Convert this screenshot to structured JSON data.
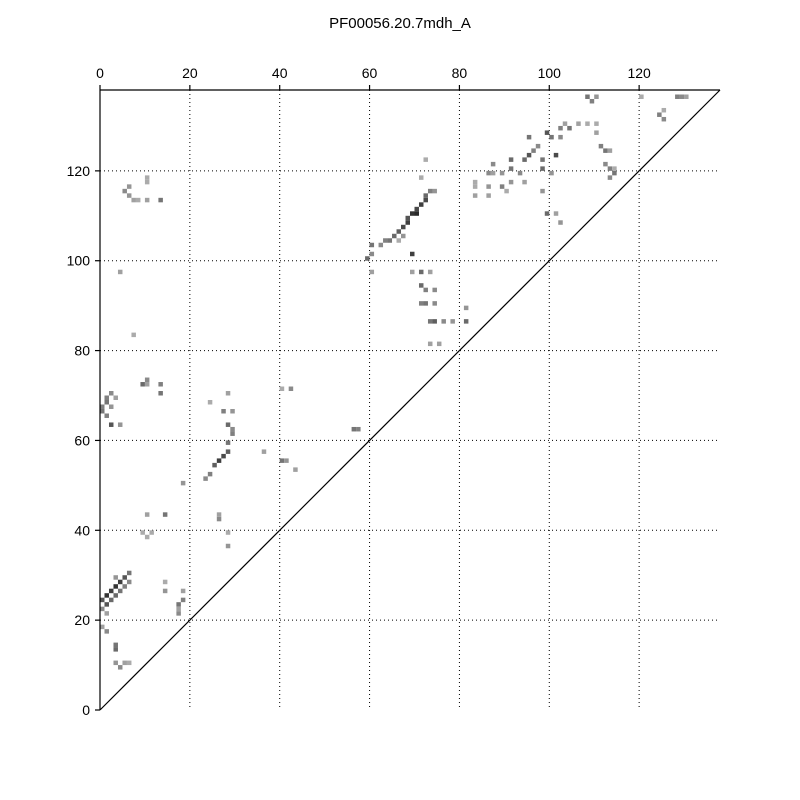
{
  "chart_data": {
    "type": "heatmap",
    "title": "PF00056.20.7mdh_A",
    "xlabel": "",
    "ylabel": "",
    "xlim": [
      0,
      138
    ],
    "ylim": [
      0,
      138
    ],
    "x_ticks": [
      0,
      20,
      40,
      60,
      80,
      100,
      120
    ],
    "y_ticks": [
      0,
      20,
      40,
      60,
      80,
      100,
      120
    ],
    "x_axis_position": "top",
    "grid": true,
    "colormap": "grayscale",
    "cells": [
      [
        0,
        24,
        0.7
      ],
      [
        1,
        25,
        0.85
      ],
      [
        1,
        23,
        0.7
      ],
      [
        2,
        26,
        0.8
      ],
      [
        2,
        24,
        0.6
      ],
      [
        3,
        27,
        0.85
      ],
      [
        3,
        25,
        0.6
      ],
      [
        4,
        28,
        0.8
      ],
      [
        4,
        26,
        0.55
      ],
      [
        5,
        29,
        0.7
      ],
      [
        5,
        27,
        0.5
      ],
      [
        6,
        30,
        0.55
      ],
      [
        6,
        28,
        0.45
      ],
      [
        0,
        22,
        0.45
      ],
      [
        1,
        21,
        0.35
      ],
      [
        3,
        29,
        0.4
      ],
      [
        0,
        66,
        0.55
      ],
      [
        0,
        67,
        0.5
      ],
      [
        1,
        68,
        0.55
      ],
      [
        1,
        69,
        0.5
      ],
      [
        2,
        70,
        0.45
      ],
      [
        1,
        65,
        0.5
      ],
      [
        2,
        67,
        0.4
      ],
      [
        3,
        69,
        0.35
      ],
      [
        2,
        63,
        0.7
      ],
      [
        4,
        63,
        0.4
      ],
      [
        1,
        17,
        0.45
      ],
      [
        0,
        18,
        0.35
      ],
      [
        3,
        13,
        0.6
      ],
      [
        3,
        14,
        0.55
      ],
      [
        3,
        10,
        0.4
      ],
      [
        4,
        9,
        0.45
      ],
      [
        5,
        10,
        0.35
      ],
      [
        6,
        10,
        0.3
      ],
      [
        5,
        115,
        0.45
      ],
      [
        6,
        116,
        0.4
      ],
      [
        6,
        114,
        0.4
      ],
      [
        7,
        113,
        0.35
      ],
      [
        8,
        113,
        0.3
      ],
      [
        10,
        118,
        0.3
      ],
      [
        10,
        117,
        0.3
      ],
      [
        10,
        113,
        0.35
      ],
      [
        13,
        113,
        0.55
      ],
      [
        4,
        97,
        0.35
      ],
      [
        7,
        83,
        0.3
      ],
      [
        9,
        72,
        0.6
      ],
      [
        10,
        73,
        0.45
      ],
      [
        10,
        72,
        0.35
      ],
      [
        13,
        72,
        0.5
      ],
      [
        13,
        70,
        0.55
      ],
      [
        10,
        43,
        0.35
      ],
      [
        9,
        39,
        0.3
      ],
      [
        10,
        38,
        0.3
      ],
      [
        11,
        39,
        0.3
      ],
      [
        14,
        43,
        0.55
      ],
      [
        14,
        28,
        0.3
      ],
      [
        14,
        26,
        0.4
      ],
      [
        17,
        23,
        0.55
      ],
      [
        18,
        24,
        0.5
      ],
      [
        17,
        21,
        0.45
      ],
      [
        17,
        22,
        0.35
      ],
      [
        18,
        26,
        0.35
      ],
      [
        18,
        50,
        0.4
      ],
      [
        23,
        51,
        0.45
      ],
      [
        24,
        52,
        0.5
      ],
      [
        25,
        54,
        0.65
      ],
      [
        26,
        55,
        0.8
      ],
      [
        27,
        56,
        0.75
      ],
      [
        28,
        57,
        0.65
      ],
      [
        28,
        59,
        0.55
      ],
      [
        29,
        61,
        0.5
      ],
      [
        29,
        62,
        0.45
      ],
      [
        28,
        63,
        0.6
      ],
      [
        29,
        66,
        0.4
      ],
      [
        27,
        66,
        0.5
      ],
      [
        28,
        70,
        0.35
      ],
      [
        24,
        68,
        0.3
      ],
      [
        26,
        42,
        0.45
      ],
      [
        26,
        43,
        0.35
      ],
      [
        28,
        36,
        0.4
      ],
      [
        28,
        39,
        0.3
      ],
      [
        36,
        57,
        0.35
      ],
      [
        40,
        71,
        0.3
      ],
      [
        42,
        71,
        0.45
      ],
      [
        40,
        55,
        0.55
      ],
      [
        41,
        55,
        0.4
      ],
      [
        43,
        53,
        0.35
      ],
      [
        56,
        62,
        0.55
      ],
      [
        57,
        62,
        0.5
      ],
      [
        59,
        100,
        0.6
      ],
      [
        60,
        101,
        0.45
      ],
      [
        60,
        103,
        0.55
      ],
      [
        60,
        97,
        0.35
      ],
      [
        62,
        103,
        0.45
      ],
      [
        63,
        104,
        0.5
      ],
      [
        64,
        104,
        0.55
      ],
      [
        65,
        105,
        0.6
      ],
      [
        66,
        106,
        0.65
      ],
      [
        67,
        107,
        0.75
      ],
      [
        68,
        108,
        0.8
      ],
      [
        68,
        109,
        0.7
      ],
      [
        69,
        110,
        0.85
      ],
      [
        70,
        110,
        0.9
      ],
      [
        70,
        111,
        0.75
      ],
      [
        71,
        112,
        0.8
      ],
      [
        72,
        113,
        0.75
      ],
      [
        72,
        114,
        0.6
      ],
      [
        73,
        115,
        0.5
      ],
      [
        74,
        115,
        0.4
      ],
      [
        69,
        101,
        0.8
      ],
      [
        71,
        118,
        0.3
      ],
      [
        72,
        122,
        0.3
      ],
      [
        66,
        104,
        0.3
      ],
      [
        67,
        105,
        0.4
      ],
      [
        69,
        97,
        0.35
      ],
      [
        71,
        97,
        0.6
      ],
      [
        73,
        97,
        0.35
      ],
      [
        71,
        94,
        0.6
      ],
      [
        72,
        93,
        0.5
      ],
      [
        74,
        93,
        0.45
      ],
      [
        71,
        90,
        0.5
      ],
      [
        72,
        90,
        0.55
      ],
      [
        74,
        90,
        0.45
      ],
      [
        73,
        86,
        0.55
      ],
      [
        74,
        86,
        0.65
      ],
      [
        76,
        86,
        0.45
      ],
      [
        78,
        86,
        0.4
      ],
      [
        73,
        81,
        0.35
      ],
      [
        75,
        81,
        0.35
      ],
      [
        81,
        89,
        0.4
      ],
      [
        81,
        86,
        0.6
      ],
      [
        83,
        117,
        0.3
      ],
      [
        83,
        116,
        0.3
      ],
      [
        83,
        114,
        0.35
      ],
      [
        86,
        119,
        0.45
      ],
      [
        86,
        116,
        0.4
      ],
      [
        86,
        114,
        0.35
      ],
      [
        87,
        119,
        0.35
      ],
      [
        87,
        121,
        0.45
      ],
      [
        89,
        119,
        0.4
      ],
      [
        89,
        116,
        0.5
      ],
      [
        90,
        115,
        0.3
      ],
      [
        91,
        120,
        0.55
      ],
      [
        91,
        117,
        0.4
      ],
      [
        91,
        122,
        0.6
      ],
      [
        93,
        119,
        0.45
      ],
      [
        94,
        117,
        0.35
      ],
      [
        94,
        122,
        0.6
      ],
      [
        95,
        123,
        0.7
      ],
      [
        95,
        127,
        0.55
      ],
      [
        96,
        124,
        0.5
      ],
      [
        97,
        125,
        0.45
      ],
      [
        98,
        122,
        0.55
      ],
      [
        98,
        115,
        0.4
      ],
      [
        98,
        120,
        0.6
      ],
      [
        99,
        128,
        0.7
      ],
      [
        100,
        127,
        0.55
      ],
      [
        100,
        119,
        0.4
      ],
      [
        99,
        110,
        0.6
      ],
      [
        101,
        123,
        0.75
      ],
      [
        102,
        129,
        0.5
      ],
      [
        102,
        127,
        0.45
      ],
      [
        102,
        108,
        0.4
      ],
      [
        101,
        110,
        0.35
      ],
      [
        103,
        130,
        0.35
      ],
      [
        104,
        129,
        0.55
      ],
      [
        106,
        130,
        0.35
      ],
      [
        108,
        130,
        0.3
      ],
      [
        108,
        136,
        0.55
      ],
      [
        109,
        135,
        0.5
      ],
      [
        110,
        136,
        0.4
      ],
      [
        110,
        130,
        0.3
      ],
      [
        110,
        128,
        0.35
      ],
      [
        111,
        125,
        0.5
      ],
      [
        112,
        124,
        0.55
      ],
      [
        113,
        124,
        0.35
      ],
      [
        112,
        121,
        0.45
      ],
      [
        113,
        120,
        0.5
      ],
      [
        114,
        119,
        0.55
      ],
      [
        113,
        118,
        0.45
      ],
      [
        114,
        120,
        0.3
      ],
      [
        120,
        136,
        0.3
      ],
      [
        124,
        132,
        0.5
      ],
      [
        125,
        131,
        0.45
      ],
      [
        125,
        133,
        0.3
      ],
      [
        128,
        136,
        0.5
      ],
      [
        129,
        136,
        0.45
      ],
      [
        130,
        136,
        0.35
      ]
    ]
  }
}
